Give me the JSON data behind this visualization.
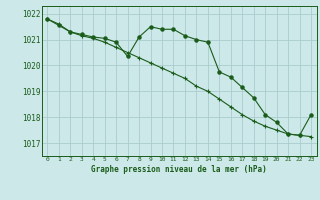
{
  "line1_x": [
    0,
    1,
    2,
    3,
    4,
    5,
    6,
    7,
    8,
    9,
    10,
    11,
    12,
    13,
    14,
    15,
    16,
    17,
    18,
    19,
    20,
    21,
    22,
    23
  ],
  "line1_y": [
    1021.8,
    1021.6,
    1021.3,
    1021.15,
    1021.05,
    1020.9,
    1020.7,
    1020.5,
    1020.3,
    1020.1,
    1019.9,
    1019.7,
    1019.5,
    1019.2,
    1019.0,
    1018.7,
    1018.4,
    1018.1,
    1017.85,
    1017.65,
    1017.5,
    1017.35,
    1017.3,
    1017.25
  ],
  "line2_x": [
    0,
    1,
    2,
    3,
    4,
    5,
    6,
    7,
    8,
    9,
    10,
    11,
    12,
    13,
    14,
    15,
    16,
    17,
    18,
    19,
    20,
    21,
    22,
    23
  ],
  "line2_y": [
    1021.8,
    1021.55,
    1021.3,
    1021.2,
    1021.1,
    1021.05,
    1020.9,
    1020.35,
    1021.1,
    1021.5,
    1021.4,
    1021.4,
    1021.15,
    1021.0,
    1020.9,
    1019.75,
    1019.55,
    1019.15,
    1018.75,
    1018.1,
    1017.8,
    1017.35,
    1017.3,
    1018.1
  ],
  "line_color": "#1a5c1a",
  "bg_color": "#cce8e8",
  "grid_color": "#aacccc",
  "title": "Graphe pression niveau de la mer (hPa)",
  "ylim": [
    1016.5,
    1022.3
  ],
  "yticks": [
    1017,
    1018,
    1019,
    1020,
    1021,
    1022
  ],
  "xticks": [
    0,
    1,
    2,
    3,
    4,
    5,
    6,
    7,
    8,
    9,
    10,
    11,
    12,
    13,
    14,
    15,
    16,
    17,
    18,
    19,
    20,
    21,
    22,
    23
  ]
}
